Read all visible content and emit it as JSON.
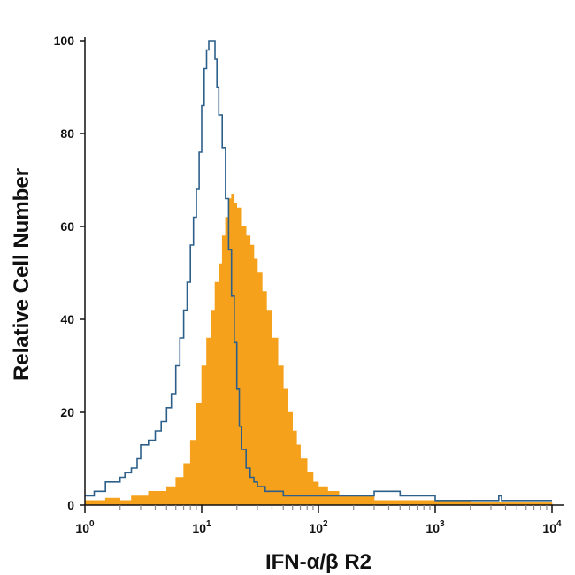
{
  "chart_data": {
    "type": "area",
    "xlabel": "IFN-α/β R2",
    "ylabel": "Relative Cell Number",
    "x_scale": "log",
    "xlim": [
      1,
      10000
    ],
    "ylim": [
      0,
      100
    ],
    "x_ticks": [
      {
        "value": 1,
        "base": "10",
        "exp": "0"
      },
      {
        "value": 10,
        "base": "10",
        "exp": "1"
      },
      {
        "value": 100,
        "base": "10",
        "exp": "2"
      },
      {
        "value": 1000,
        "base": "10",
        "exp": "3"
      },
      {
        "value": 10000,
        "base": "10",
        "exp": "4"
      }
    ],
    "y_ticks": [
      0,
      20,
      40,
      60,
      80,
      100
    ],
    "grid": false,
    "series": [
      {
        "style": "filled",
        "color": "#f5a11c",
        "x": [
          1,
          1.5,
          2,
          2.5,
          3,
          3.5,
          4,
          5,
          6,
          7,
          8,
          9,
          10,
          11,
          12,
          13,
          14,
          15,
          16,
          17,
          18,
          19,
          20,
          22,
          24,
          26,
          28,
          30,
          33,
          36,
          40,
          45,
          50,
          55,
          60,
          65,
          70,
          80,
          90,
          100,
          120,
          150,
          200,
          300,
          500,
          1000,
          2000,
          5000,
          10000
        ],
        "y": [
          1,
          1.5,
          1,
          2,
          2,
          3,
          3,
          4,
          6,
          9,
          14,
          22,
          30,
          36,
          42,
          48,
          52,
          58,
          62,
          66,
          67,
          65,
          64,
          60,
          58,
          56,
          53,
          50,
          46,
          42,
          36,
          30,
          25,
          20,
          16,
          13,
          10,
          7,
          5,
          4,
          3,
          2,
          2,
          1,
          1,
          1,
          0.5,
          0.5,
          0
        ]
      },
      {
        "style": "outline",
        "color": "#2c5f8a",
        "x": [
          1,
          1.2,
          1.5,
          1.8,
          2,
          2.2,
          2.5,
          2.8,
          3,
          3.5,
          4,
          4.5,
          5,
          5.5,
          6,
          6.5,
          7,
          7.5,
          8,
          8.5,
          9,
          9.5,
          10,
          10.5,
          11,
          11.5,
          12,
          12.5,
          13,
          13.5,
          14,
          15,
          16,
          17,
          18,
          19,
          20,
          21,
          22,
          24,
          26,
          28,
          30,
          35,
          40,
          50,
          70,
          100,
          150,
          200,
          250,
          300,
          400,
          450,
          500,
          700,
          1000,
          2000,
          3500,
          3700,
          5000,
          10000
        ],
        "y": [
          2,
          3,
          5,
          5,
          6,
          7,
          8,
          10,
          13,
          14,
          16,
          18,
          21,
          24,
          30,
          36,
          42,
          48,
          56,
          62,
          68,
          76,
          86,
          94,
          98,
          100,
          100,
          100,
          96,
          90,
          84,
          77,
          66,
          55,
          45,
          35,
          25,
          17,
          12,
          8,
          6,
          5,
          4,
          3,
          3,
          2,
          2,
          2,
          2,
          2,
          2,
          3,
          3,
          3,
          2,
          2,
          1,
          1,
          2,
          1,
          1,
          1
        ]
      }
    ]
  }
}
